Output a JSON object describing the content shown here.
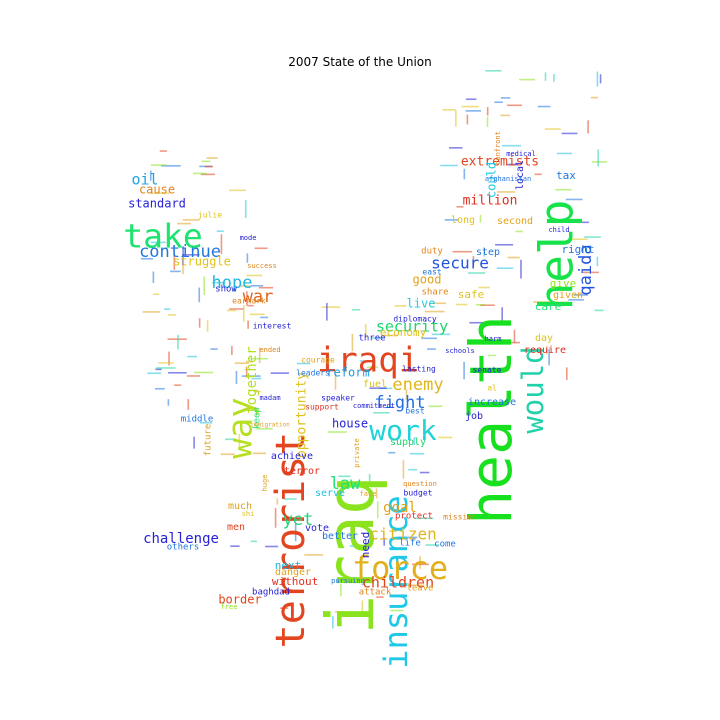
{
  "title": "2007 State of the Union",
  "words": [
    {
      "text": "iraq",
      "color": "#8be31d"
    },
    {
      "text": "health",
      "color": "#17e01e"
    },
    {
      "text": "help",
      "color": "#16e24a"
    },
    {
      "text": "terrorist",
      "color": "#e2451f"
    },
    {
      "text": "insurance",
      "color": "#1ec8e6"
    },
    {
      "text": "iraqi",
      "color": "#e2451f"
    },
    {
      "text": "work",
      "color": "#21d3d8"
    },
    {
      "text": "way",
      "color": "#b7df23"
    },
    {
      "text": "take",
      "color": "#1de36f"
    },
    {
      "text": "would",
      "color": "#22d1a9"
    },
    {
      "text": "force",
      "color": "#e2b01c"
    },
    {
      "text": "continue",
      "color": "#2176e0"
    },
    {
      "text": "hope",
      "color": "#22b7e0"
    },
    {
      "text": "enemy",
      "color": "#e0b61d"
    },
    {
      "text": "citizen",
      "color": "#e0b61d"
    },
    {
      "text": "children",
      "color": "#e2451f"
    },
    {
      "text": "law",
      "color": "#1fe37a"
    },
    {
      "text": "yet",
      "color": "#23d37e"
    },
    {
      "text": "fight",
      "color": "#1f6ee3"
    },
    {
      "text": "qaida",
      "color": "#2353e0"
    },
    {
      "text": "war",
      "color": "#e0641c"
    },
    {
      "text": "secure",
      "color": "#2353e0"
    },
    {
      "text": "security",
      "color": "#1fd36c"
    },
    {
      "text": "challenge",
      "color": "#2622d6"
    },
    {
      "text": "goal",
      "color": "#e0a21c"
    },
    {
      "text": "extremists",
      "color": "#e2451f"
    },
    {
      "text": "oil",
      "color": "#21a3e0"
    },
    {
      "text": "million",
      "color": "#e22d1f"
    },
    {
      "text": "together",
      "color": "#b4e020"
    },
    {
      "text": "opportunity",
      "color": "#e0c21c"
    },
    {
      "text": "reform",
      "color": "#1f9fe3"
    },
    {
      "text": "struggle",
      "color": "#e0c21c"
    },
    {
      "text": "border",
      "color": "#e2451f"
    },
    {
      "text": "standard",
      "color": "#2622d6"
    },
    {
      "text": "cause",
      "color": "#e0841c"
    },
    {
      "text": "good",
      "color": "#e0a21c"
    },
    {
      "text": "live",
      "color": "#20c9e0"
    },
    {
      "text": "safe",
      "color": "#e0c21c"
    },
    {
      "text": "economy",
      "color": "#e0c21c"
    },
    {
      "text": "could",
      "color": "#1ec8e6"
    },
    {
      "text": "care",
      "color": "#2ae078"
    },
    {
      "text": "give",
      "color": "#8be31d"
    },
    {
      "text": "right",
      "color": "#2176e0"
    },
    {
      "text": "tax",
      "color": "#2176e0"
    },
    {
      "text": "step",
      "color": "#2176e0"
    },
    {
      "text": "second",
      "color": "#e0a21c"
    },
    {
      "text": "long",
      "color": "#e0c21c"
    },
    {
      "text": "without",
      "color": "#e22d1f"
    },
    {
      "text": "next",
      "color": "#21b0d6"
    },
    {
      "text": "better",
      "color": "#2176e0"
    },
    {
      "text": "danger",
      "color": "#e0a21c"
    },
    {
      "text": "serve",
      "color": "#21c2e0"
    },
    {
      "text": "much",
      "color": "#e0a21c"
    },
    {
      "text": "men",
      "color": "#e2451f"
    },
    {
      "text": "vote",
      "color": "#2622d6"
    },
    {
      "text": "fuel",
      "color": "#e0c21c"
    },
    {
      "text": "supply",
      "color": "#1fd36c"
    },
    {
      "text": "increase",
      "color": "#2176e0"
    },
    {
      "text": "job",
      "color": "#2622d6"
    },
    {
      "text": "require",
      "color": "#e22d1f"
    },
    {
      "text": "day",
      "color": "#e0c21c"
    },
    {
      "text": "given",
      "color": "#e0a21c"
    },
    {
      "text": "local",
      "color": "#2622d6"
    },
    {
      "text": "share",
      "color": "#e0841c"
    },
    {
      "text": "duty",
      "color": "#e0841c"
    },
    {
      "text": "east",
      "color": "#2176e0"
    },
    {
      "text": "three",
      "color": "#2622d6"
    },
    {
      "text": "life",
      "color": "#2176e0"
    },
    {
      "text": "come",
      "color": "#2176e0"
    },
    {
      "text": "attack",
      "color": "#e0841c"
    },
    {
      "text": "leave",
      "color": "#e0a21c"
    },
    {
      "text": "protect",
      "color": "#e22d1f"
    },
    {
      "text": "terror",
      "color": "#e22d1f"
    },
    {
      "text": "middle",
      "color": "#2176e0"
    },
    {
      "text": "keep",
      "color": "#2ae078"
    },
    {
      "text": "future",
      "color": "#e0a21c"
    },
    {
      "text": "others",
      "color": "#2176e0"
    },
    {
      "text": "baghdad",
      "color": "#2622d6"
    },
    {
      "text": "show",
      "color": "#2622d6"
    },
    {
      "text": "julie",
      "color": "#e0c21c"
    },
    {
      "text": "earmark",
      "color": "#e0841c"
    },
    {
      "text": "success",
      "color": "#e0841c"
    },
    {
      "text": "house",
      "color": "#2622d6"
    },
    {
      "text": "al",
      "color": "#e0c21c"
    },
    {
      "text": "senate",
      "color": "#2622d6"
    },
    {
      "text": "afghanistan",
      "color": "#2176e0"
    },
    {
      "text": "interest",
      "color": "#2622d6"
    },
    {
      "text": "support",
      "color": "#e22d1f"
    },
    {
      "text": "leaders",
      "color": "#2176e0"
    },
    {
      "text": "pursuing",
      "color": "#2176e0"
    },
    {
      "text": "mode",
      "color": "#2622d6"
    },
    {
      "text": "harm",
      "color": "#2622d6"
    },
    {
      "text": "schools",
      "color": "#2622d6"
    },
    {
      "text": "need",
      "color": "#2622d6"
    },
    {
      "text": "free",
      "color": "#8be31d"
    },
    {
      "text": "lasting",
      "color": "#2622d6"
    },
    {
      "text": "diplomacy",
      "color": "#2622d6"
    },
    {
      "text": "courage",
      "color": "#e0a21c"
    },
    {
      "text": "speaker",
      "color": "#2622d6"
    },
    {
      "text": "best",
      "color": "#2176e0"
    },
    {
      "text": "budget",
      "color": "#2622d6"
    },
    {
      "text": "mission",
      "color": "#e0841c"
    },
    {
      "text": "private",
      "color": "#e0a21c"
    },
    {
      "text": "medical",
      "color": "#2622d6"
    },
    {
      "text": "confront",
      "color": "#e0841c"
    },
    {
      "text": "child",
      "color": "#2622d6"
    },
    {
      "text": "immigration",
      "color": "#e0a21c"
    },
    {
      "text": "madam",
      "color": "#2622d6"
    },
    {
      "text": "commitment",
      "color": "#2622d6"
    },
    {
      "text": "achieve",
      "color": "#2622d6"
    },
    {
      "text": "huge",
      "color": "#e0a21c"
    },
    {
      "text": "shi",
      "color": "#e0c21c"
    },
    {
      "text": "face",
      "color": "#e0a21c"
    },
    {
      "text": "question",
      "color": "#e0841c"
    },
    {
      "text": "ended",
      "color": "#e0841c"
    },
    {
      "text": "provide",
      "color": "#e0a21c"
    },
    {
      "text": "within",
      "color": "#e0a21c"
    }
  ]
}
